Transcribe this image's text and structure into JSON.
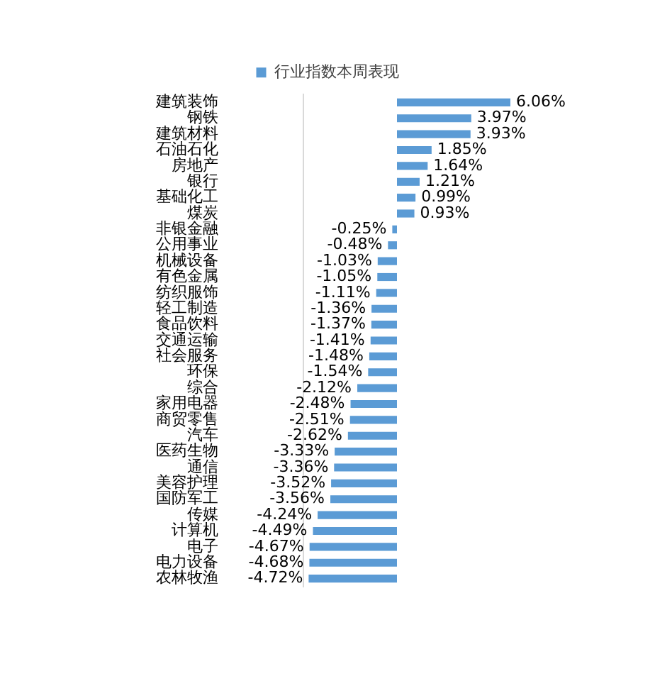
{
  "chart_data": {
    "type": "bar",
    "orientation": "horizontal",
    "legend": "top",
    "grid": false,
    "categories": [
      "建筑装饰",
      "钢铁",
      "建筑材料",
      "石油石化",
      "房地产",
      "银行",
      "基础化工",
      "煤炭",
      "非银金融",
      "公用事业",
      "机械设备",
      "有色金属",
      "纺织服饰",
      "轻工制造",
      "食品饮料",
      "交通运输",
      "社会服务",
      "环保",
      "综合",
      "家用电器",
      "商贸零售",
      "汽车",
      "医药生物",
      "通信",
      "美容护理",
      "国防军工",
      "传媒",
      "计算机",
      "电子",
      "电力设备",
      "农林牧渔"
    ],
    "series": [
      {
        "name": "行业指数本周表现",
        "color": "#5b9bd5",
        "values": [
          6.06,
          3.97,
          3.93,
          1.85,
          1.64,
          1.21,
          0.99,
          0.93,
          -0.25,
          -0.48,
          -1.03,
          -1.05,
          -1.11,
          -1.36,
          -1.37,
          -1.41,
          -1.48,
          -1.54,
          -2.12,
          -2.48,
          -2.51,
          -2.62,
          -3.33,
          -3.36,
          -3.52,
          -3.56,
          -4.24,
          -4.49,
          -4.67,
          -4.68,
          -4.72
        ],
        "value_labels": [
          "6.06%",
          "3.97%",
          "3.93%",
          "1.85%",
          "1.64%",
          "1.21%",
          "0.99%",
          "0.93%",
          "-0.25%",
          "-0.48%",
          "-1.03%",
          "-1.05%",
          "-1.11%",
          "-1.36%",
          "-1.37%",
          "-1.41%",
          "-1.48%",
          "-1.54%",
          "-2.12%",
          "-2.48%",
          "-2.51%",
          "-2.62%",
          "-3.33%",
          "-3.36%",
          "-3.52%",
          "-3.56%",
          "-4.24%",
          "-4.49%",
          "-4.67%",
          "-4.68%",
          "-4.72%"
        ]
      }
    ]
  }
}
